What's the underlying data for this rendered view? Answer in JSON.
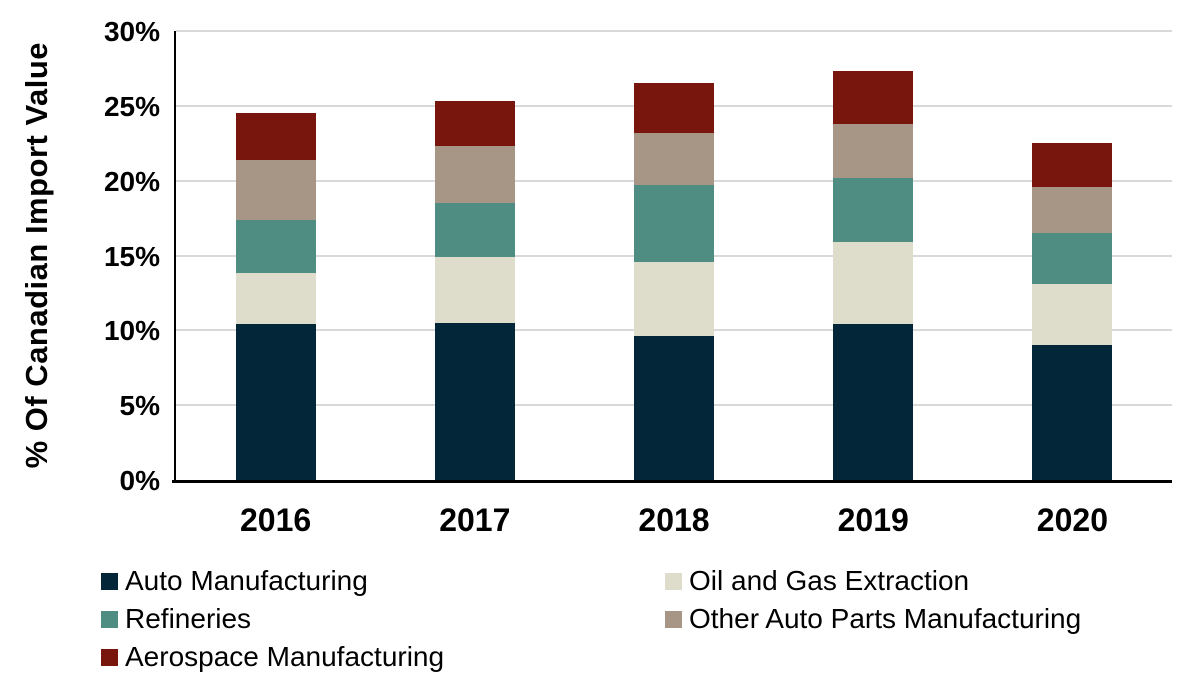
{
  "chart_data": {
    "type": "bar",
    "stacked": true,
    "title": "",
    "ylabel": "% Of Canadian Import Value",
    "xlabel": "",
    "ylim": [
      0,
      30
    ],
    "ytick_step": 5,
    "ytick_labels": [
      "0%",
      "5%",
      "10%",
      "15%",
      "20%",
      "25%",
      "30%"
    ],
    "grid": "horizontal",
    "gridline_color": "#d9d9d9",
    "axis_color": "#000000",
    "legend_position": "bottom",
    "categories": [
      "2016",
      "2017",
      "2018",
      "2019",
      "2020"
    ],
    "series": [
      {
        "name": "Auto Manufacturing",
        "color": "#042639",
        "values": [
          10.4,
          10.5,
          9.6,
          10.4,
          9.0
        ]
      },
      {
        "name": "Oil and Gas Extraction",
        "color": "#dedccb",
        "values": [
          3.4,
          4.4,
          5.0,
          5.5,
          4.1
        ]
      },
      {
        "name": "Refineries",
        "color": "#4f8c81",
        "values": [
          3.6,
          3.6,
          5.1,
          4.3,
          3.4
        ]
      },
      {
        "name": "Other Auto Parts Manufacturing",
        "color": "#a79585",
        "values": [
          4.0,
          3.8,
          3.5,
          3.6,
          3.1
        ]
      },
      {
        "name": "Aerospace Manufacturing",
        "color": "#78150d",
        "values": [
          3.1,
          3.0,
          3.3,
          3.5,
          2.9
        ]
      }
    ],
    "stack_totals": [
      24.5,
      25.3,
      26.5,
      27.3,
      22.5
    ],
    "legend_order": [
      "Auto Manufacturing",
      "Oil and Gas Extraction",
      "Refineries",
      "Other Auto Parts Manufacturing",
      "Aerospace Manufacturing"
    ]
  }
}
